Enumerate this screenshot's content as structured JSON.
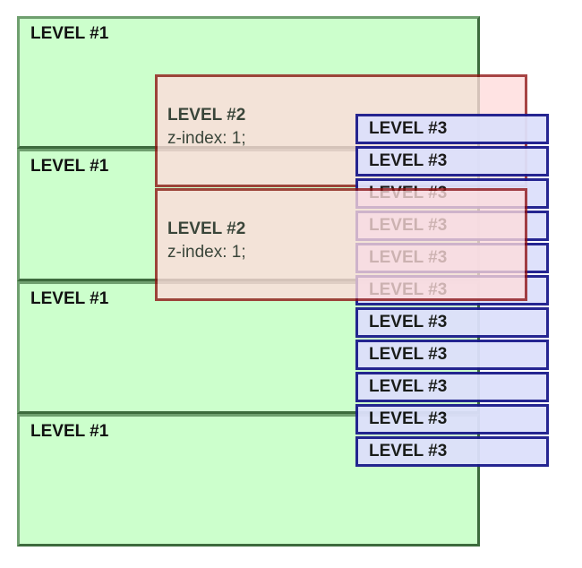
{
  "level1": [
    "LEVEL #1",
    "LEVEL #1",
    "LEVEL #1",
    "LEVEL #1"
  ],
  "level2": [
    {
      "label": "LEVEL #2",
      "note": "z-index: 1;"
    },
    {
      "label": "LEVEL #2",
      "note": "z-index: 1;"
    }
  ],
  "level3": [
    "LEVEL #3",
    "LEVEL #3",
    "LEVEL #3",
    "LEVEL #3",
    "LEVEL #3",
    "LEVEL #3",
    "LEVEL #3",
    "LEVEL #3",
    "LEVEL #3",
    "LEVEL #3",
    "LEVEL #3"
  ]
}
